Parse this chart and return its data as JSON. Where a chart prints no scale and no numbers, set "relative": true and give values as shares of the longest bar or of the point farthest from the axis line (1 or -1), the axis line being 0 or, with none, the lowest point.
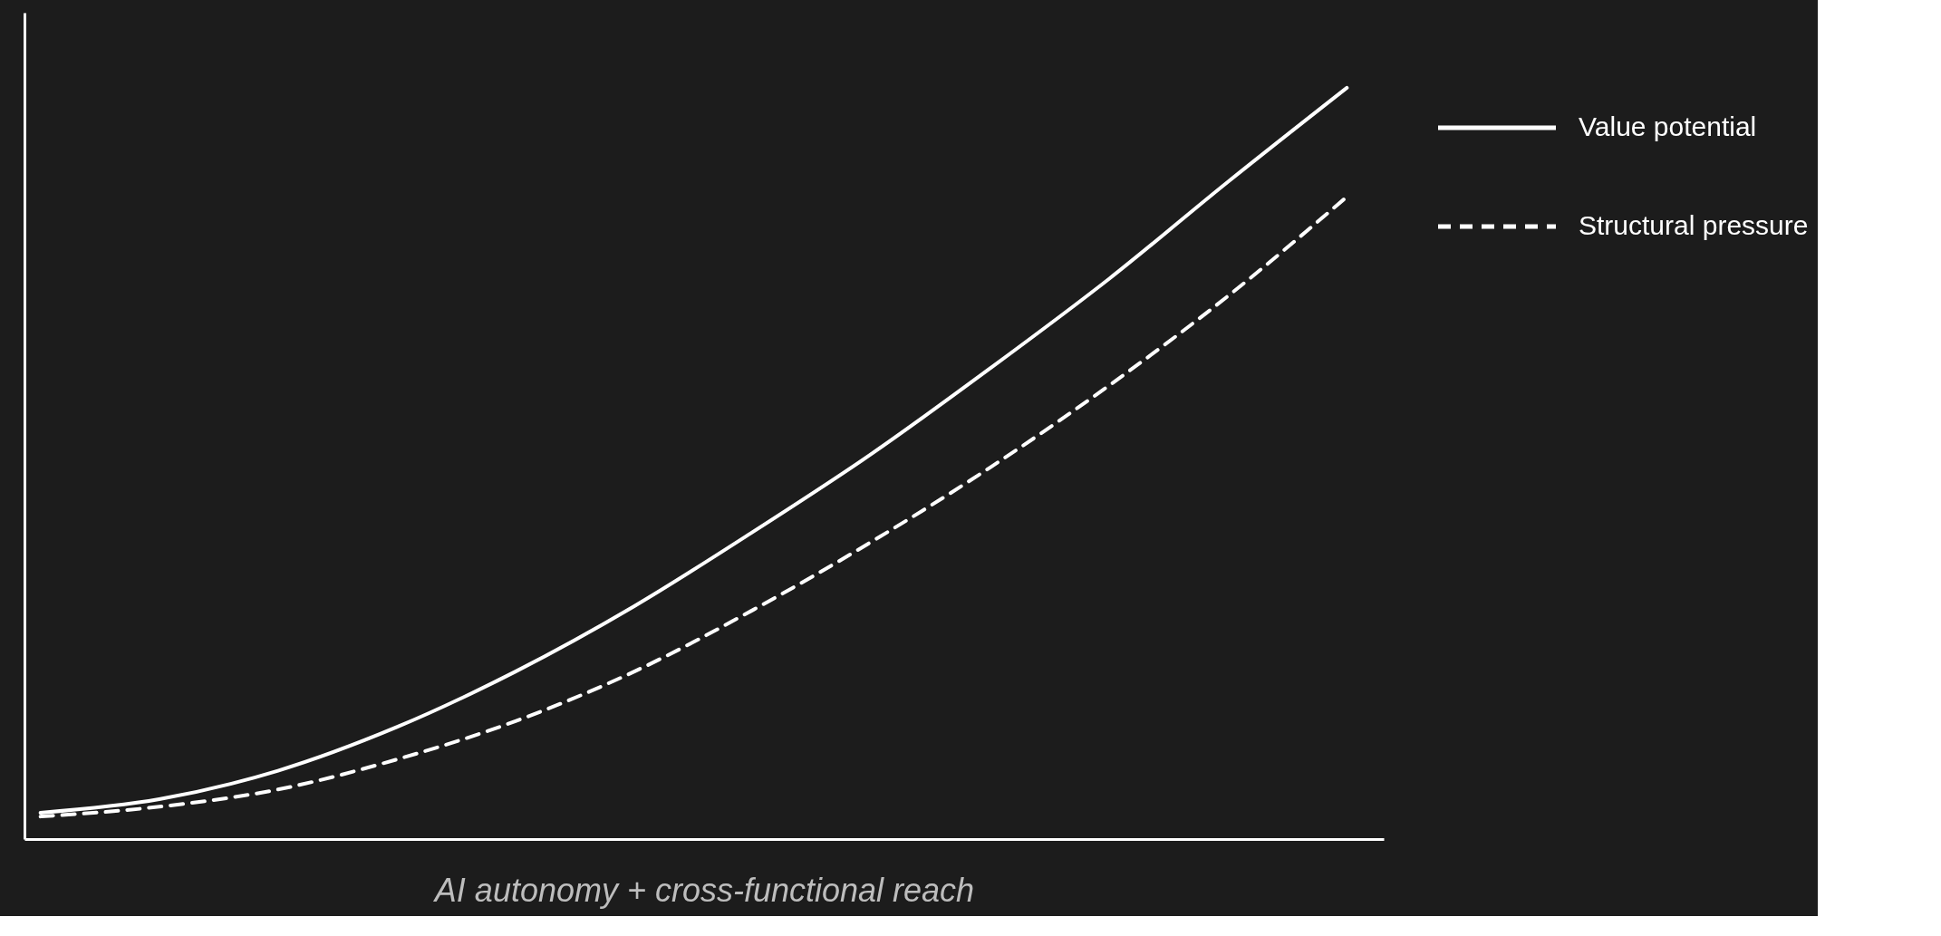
{
  "chart_data": {
    "type": "line",
    "relative": true,
    "xlabel": "AI autonomy + cross-functional reach",
    "categories": [
      null,
      null,
      null,
      null,
      null,
      null,
      null,
      null,
      null,
      null,
      null,
      null
    ],
    "series": [
      {
        "name": "Value potential",
        "color": "#ffffff",
        "line_style": "solid",
        "values": [
          0.035,
          0.053,
          0.091,
          0.149,
          0.223,
          0.31,
          0.409,
          0.513,
          0.627,
          0.746,
          0.875,
          1
        ]
      },
      {
        "name": "Structural pressure",
        "color": "#ffffff",
        "line_style": "dashed",
        "values": [
          0.03,
          0.043,
          0.066,
          0.106,
          0.157,
          0.223,
          0.305,
          0.396,
          0.495,
          0.604,
          0.723,
          0.855
        ]
      }
    ],
    "legend": "top right",
    "grid": false,
    "marker": "none"
  }
}
